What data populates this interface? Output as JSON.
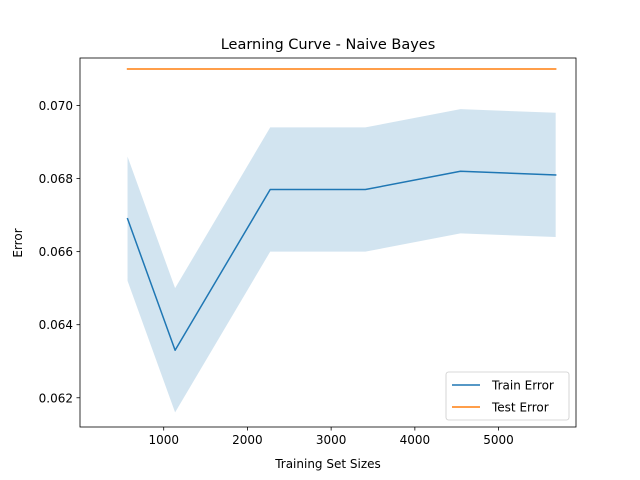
{
  "chart_data": {
    "type": "line",
    "title": "Learning Curve - Naive Bayes",
    "xlabel": "Training Set Sizes",
    "ylabel": "Error",
    "xlim": [
      0,
      5925
    ],
    "ylim": [
      0.0612,
      0.0713
    ],
    "xticks": [
      1000,
      2000,
      3000,
      4000,
      5000
    ],
    "yticks": [
      0.062,
      0.064,
      0.066,
      0.068,
      0.07
    ],
    "ytick_labels": [
      "0.062",
      "0.064",
      "0.066",
      "0.068",
      "0.070"
    ],
    "x": [
      568,
      1136,
      2272,
      3409,
      4545,
      5682
    ],
    "series": [
      {
        "name": "Train Error",
        "color": "#1f77b4",
        "values": [
          0.0669,
          0.0633,
          0.0677,
          0.0677,
          0.0682,
          0.0681
        ],
        "band_lower": [
          0.0652,
          0.0616,
          0.066,
          0.066,
          0.0665,
          0.0664
        ],
        "band_upper": [
          0.0686,
          0.065,
          0.0694,
          0.0694,
          0.0699,
          0.0698
        ],
        "band_color": "#1f77b4"
      },
      {
        "name": "Test Error",
        "color": "#ff7f0e",
        "values": [
          0.071,
          0.071,
          0.071,
          0.071,
          0.071,
          0.071
        ]
      }
    ],
    "grid": false,
    "legend_position": "lower-right"
  }
}
